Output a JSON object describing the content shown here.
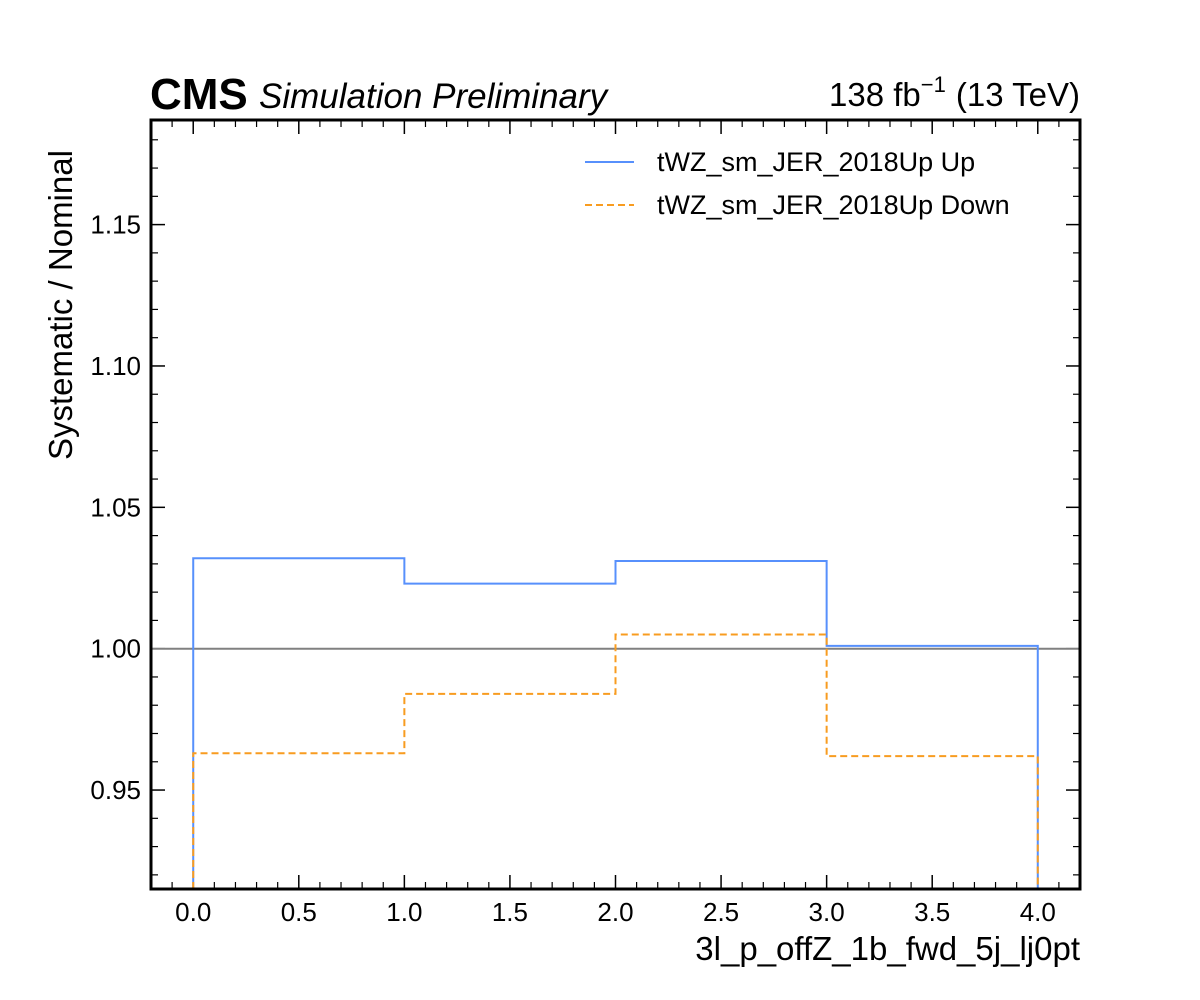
{
  "header": {
    "experiment": "CMS",
    "label": "Simulation Preliminary",
    "lumi_value": "138 fb",
    "lumi_exponent": "−1",
    "energy": "(13 TeV)"
  },
  "colors": {
    "up": "#5790fc",
    "down": "#f89c20",
    "reference": "#808080"
  },
  "chart_data": {
    "type": "line",
    "step": true,
    "xlabel": "3l_p_offZ_1b_fwd_5j_lj0pt",
    "ylabel": "Systematic / Nominal",
    "xlim": [
      -0.2,
      4.2
    ],
    "ylim": [
      0.915,
      1.187
    ],
    "x_ticks": [
      0.0,
      0.5,
      1.0,
      1.5,
      2.0,
      2.5,
      3.0,
      3.5,
      4.0
    ],
    "x_tick_labels": [
      "0.0",
      "0.5",
      "1.0",
      "1.5",
      "2.0",
      "2.5",
      "3.0",
      "3.5",
      "4.0"
    ],
    "y_ticks": [
      0.95,
      1.0,
      1.05,
      1.1,
      1.15
    ],
    "y_tick_labels": [
      "0.95",
      "1.00",
      "1.05",
      "1.10",
      "1.15"
    ],
    "reference_line": 1.0,
    "bin_edges": [
      0,
      1,
      2,
      3,
      4
    ],
    "series": [
      {
        "name": "tWZ_sm_JER_2018Up Up",
        "values": [
          1.032,
          1.023,
          1.031,
          1.001
        ],
        "style": "solid"
      },
      {
        "name": "tWZ_sm_JER_2018Up Down",
        "values": [
          0.963,
          0.984,
          1.005,
          0.962
        ],
        "style": "dashed"
      }
    ],
    "legend_position": "top-right"
  }
}
